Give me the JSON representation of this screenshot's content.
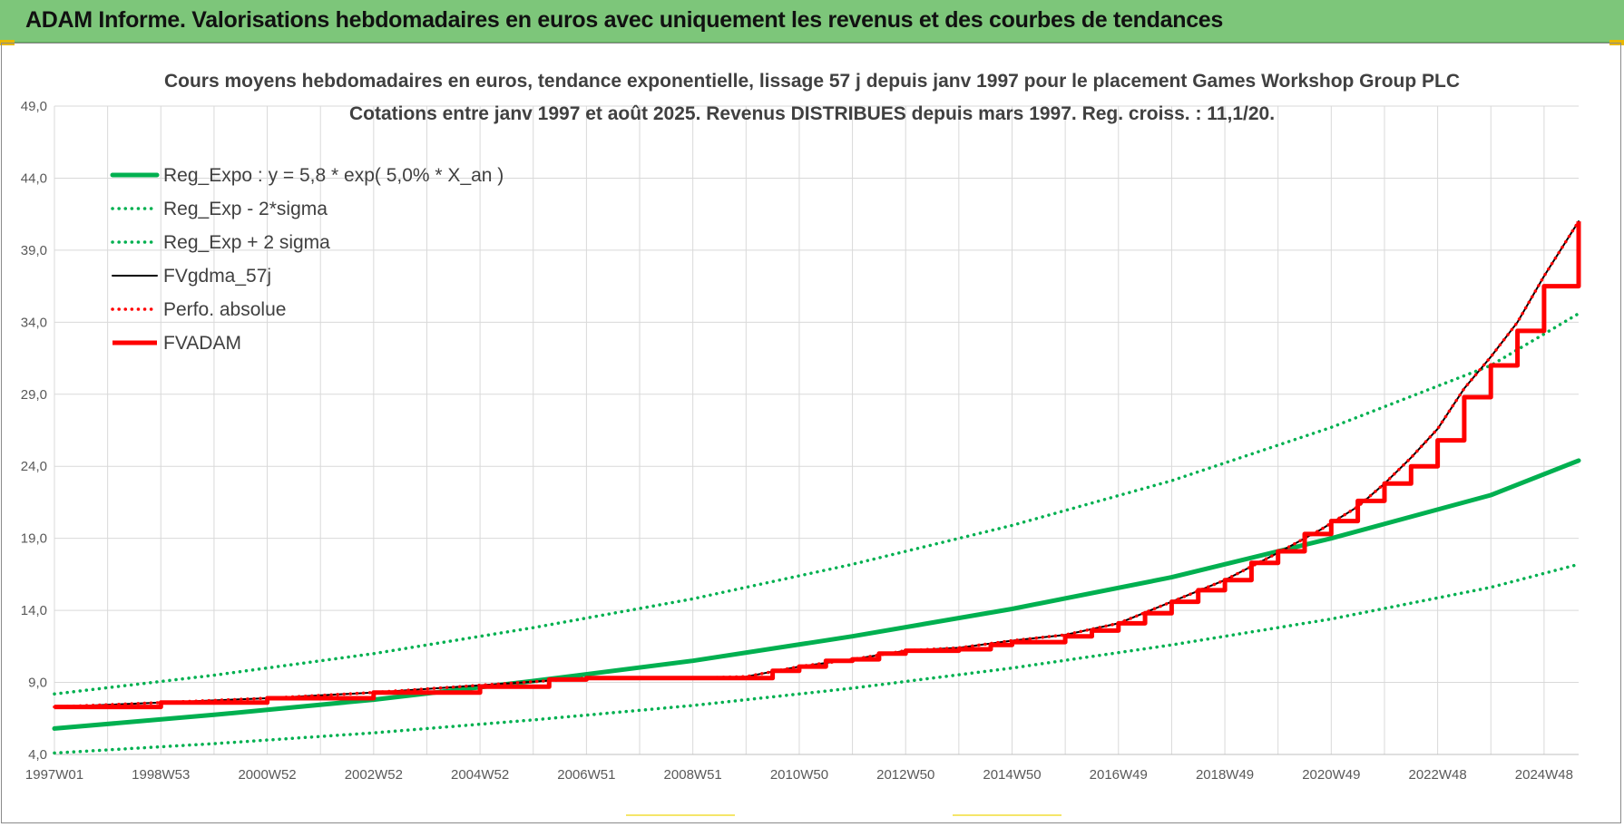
{
  "banner": {
    "title": "ADAM Informe. Valorisations hebdomadaires en euros avec uniquement les revenus et des courbes de tendances"
  },
  "colors": {
    "banner_bg": "#7dc67a",
    "trend_green": "#00b050",
    "fv_black": "#000000",
    "red": "#ff0000",
    "grid": "#d9d9d9"
  },
  "chart_data": {
    "type": "line",
    "title_line1": "Cours moyens hebdomadaires en euros, tendance exponentielle, lissage 57 j depuis janv 1997 pour le placement Games Workshop Group PLC",
    "title_line2": "Cotations entre janv 1997 et août 2025.  Revenus DISTRIBUES depuis mars 1997. Reg. croiss. : 11,1/20.",
    "xlabel": "",
    "ylabel": "",
    "ylim": [
      4.0,
      49.0
    ],
    "y_ticks": [
      "4,0",
      "9,0",
      "14,0",
      "19,0",
      "24,0",
      "29,0",
      "34,0",
      "39,0",
      "44,0",
      "49,0"
    ],
    "x_tick_labels": [
      "1997W01",
      "1998W53",
      "2000W52",
      "2002W52",
      "2004W52",
      "2006W51",
      "2008W51",
      "2010W50",
      "2012W50",
      "2014W50",
      "2016W49",
      "2018W49",
      "2020W49",
      "2022W48",
      "2024W48"
    ],
    "x_range_years": [
      1997.0,
      2025.65
    ],
    "grid": true,
    "legend_position": "top-left",
    "series": [
      {
        "name": "Reg_Expo : y = 5,8 * exp( 5,0% *  X_an )",
        "style": "solid-thick",
        "color": "#00b050",
        "x": [
          1997.0,
          2000.0,
          2003.0,
          2006.0,
          2009.0,
          2012.0,
          2015.0,
          2018.0,
          2021.0,
          2024.0,
          2025.65
        ],
        "y": [
          5.8,
          6.75,
          7.8,
          9.1,
          10.5,
          12.2,
          14.1,
          16.3,
          19.0,
          22.0,
          24.4
        ]
      },
      {
        "name": "Reg_Exp - 2*sigma",
        "style": "dotted",
        "color": "#00b050",
        "x": [
          1997.0,
          2000.0,
          2003.0,
          2006.0,
          2009.0,
          2012.0,
          2015.0,
          2018.0,
          2021.0,
          2024.0,
          2025.65
        ],
        "y": [
          4.1,
          4.75,
          5.5,
          6.4,
          7.4,
          8.6,
          10.0,
          11.6,
          13.4,
          15.6,
          17.2
        ]
      },
      {
        "name": "Reg_Exp + 2 sigma",
        "style": "dotted",
        "color": "#00b050",
        "x": [
          1997.0,
          2000.0,
          2003.0,
          2006.0,
          2009.0,
          2012.0,
          2015.0,
          2018.0,
          2021.0,
          2024.0,
          2025.65
        ],
        "y": [
          8.2,
          9.5,
          11.0,
          12.8,
          14.8,
          17.2,
          19.9,
          23.0,
          26.7,
          31.0,
          34.6
        ]
      },
      {
        "name": "FVgdma_57j",
        "style": "solid",
        "color": "#000000",
        "x": [
          1997.0,
          1999.0,
          2001.0,
          2003.0,
          2005.0,
          2007.0,
          2009.0,
          2010.0,
          2011.0,
          2012.0,
          2013.0,
          2014.0,
          2015.0,
          2016.0,
          2017.0,
          2018.0,
          2019.0,
          2020.0,
          2020.8,
          2021.5,
          2022.0,
          2022.5,
          2023.0,
          2023.5,
          2024.0,
          2024.5,
          2025.0,
          2025.65
        ],
        "y": [
          7.3,
          7.6,
          7.9,
          8.3,
          8.8,
          9.3,
          9.3,
          9.4,
          10.1,
          10.6,
          11.2,
          11.4,
          11.9,
          12.3,
          13.1,
          14.6,
          16.1,
          18.0,
          19.6,
          21.2,
          22.8,
          24.6,
          26.6,
          29.4,
          31.6,
          34.0,
          37.2,
          41.0
        ]
      },
      {
        "name": "Perfo. absolue",
        "style": "dotted",
        "color": "#ff0000",
        "x": [
          1997.0,
          1999.0,
          2001.0,
          2003.0,
          2005.0,
          2007.0,
          2009.0,
          2010.0,
          2011.0,
          2012.0,
          2013.0,
          2014.0,
          2015.0,
          2016.0,
          2017.0,
          2018.0,
          2019.0,
          2020.0,
          2020.8,
          2021.5,
          2022.0,
          2022.5,
          2023.0,
          2023.5,
          2024.0,
          2024.5,
          2025.0,
          2025.65
        ],
        "y": [
          7.3,
          7.6,
          7.9,
          8.3,
          8.8,
          9.3,
          9.3,
          9.4,
          10.1,
          10.6,
          11.2,
          11.4,
          11.9,
          12.3,
          13.1,
          14.6,
          16.1,
          18.0,
          19.6,
          21.2,
          22.8,
          24.6,
          26.6,
          29.4,
          31.6,
          34.0,
          37.2,
          41.0
        ]
      },
      {
        "name": "FVADAM",
        "style": "step-thick",
        "color": "#ff0000",
        "x": [
          1997.0,
          1999.0,
          2001.0,
          2003.0,
          2005.0,
          2006.3,
          2007.0,
          2009.0,
          2010.0,
          2010.5,
          2011.0,
          2011.5,
          2012.0,
          2012.5,
          2013.0,
          2014.0,
          2014.6,
          2015.0,
          2016.0,
          2016.5,
          2017.0,
          2017.5,
          2018.0,
          2018.5,
          2019.0,
          2019.5,
          2020.0,
          2020.5,
          2021.0,
          2021.5,
          2022.0,
          2022.5,
          2023.0,
          2023.5,
          2024.0,
          2024.5,
          2025.0,
          2025.65
        ],
        "y": [
          7.3,
          7.6,
          7.9,
          8.3,
          8.7,
          9.2,
          9.3,
          9.3,
          9.3,
          9.8,
          10.1,
          10.5,
          10.6,
          11.0,
          11.2,
          11.3,
          11.6,
          11.8,
          12.2,
          12.6,
          13.1,
          13.8,
          14.6,
          15.4,
          16.1,
          17.3,
          18.1,
          19.3,
          20.2,
          21.6,
          22.8,
          24.0,
          25.8,
          28.8,
          31.0,
          33.4,
          36.5,
          41.0
        ]
      }
    ]
  }
}
